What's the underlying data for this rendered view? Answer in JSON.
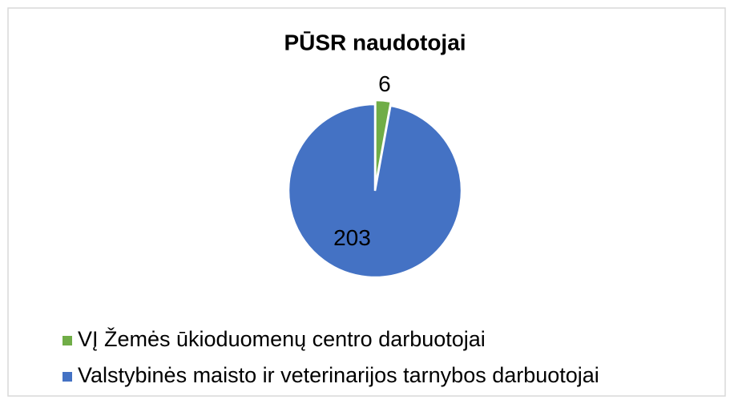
{
  "chart_data": {
    "type": "pie",
    "title": "PŪSR naudotojai",
    "categories": [
      "VĮ Žemės ūkioduomenų centro darbuotojai",
      "Valstybinės maisto ir veterinarijos tarnybos darbuotojai"
    ],
    "values": [
      6,
      203
    ],
    "colors": [
      "#70ad47",
      "#4472c4"
    ],
    "legend": "bottom"
  }
}
